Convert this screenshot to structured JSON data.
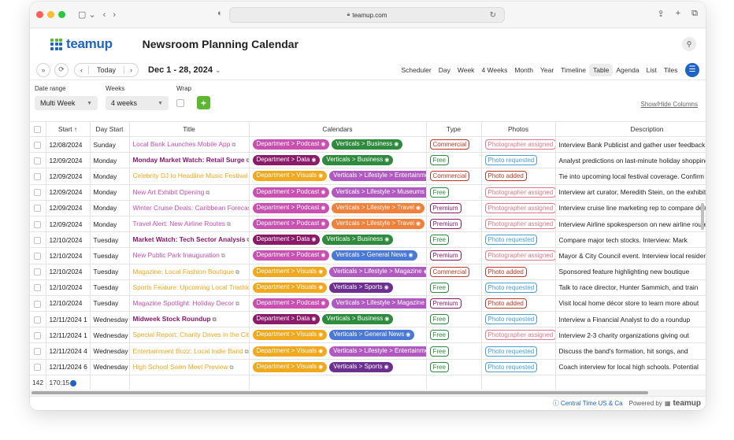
{
  "browser": {
    "url": "teamup.com"
  },
  "app": {
    "logo_text": "teamup",
    "calendar_title": "Newsroom Planning Calendar"
  },
  "toolbar": {
    "today": "Today",
    "date_range": "Dec 1 - 28, 2024",
    "views": [
      "Scheduler",
      "Day",
      "Week",
      "4 Weeks",
      "Month",
      "Year",
      "Timeline",
      "Table",
      "Agenda",
      "List",
      "Tiles"
    ],
    "active_view": "Table"
  },
  "filters": {
    "date_range_label": "Date range",
    "date_range_value": "Multi Week",
    "weeks_label": "Weeks",
    "weeks_value": "4 weeks",
    "wrap_label": "Wrap",
    "add_label": "+",
    "show_hide": "Show/Hide Columns"
  },
  "columns": [
    "Start ↑",
    "Day Start",
    "Title",
    "Calendars",
    "Type",
    "Photos",
    "Description"
  ],
  "colors": {
    "podcast": "#c94fb0",
    "data": "#8b1a6b",
    "visuals": "#f2a81d",
    "business": "#2e8b3e",
    "lifestyle": "#b05ac1",
    "general": "#4a78d6",
    "sports": "#6c2f8f",
    "lifestyle_trips": "#f0803a",
    "accent": "#1e63c7",
    "green": "#5cb82e"
  },
  "rows": [
    {
      "start": "12/08/2024",
      "day": "Sunday",
      "title": "Local Bank Launches Mobile App",
      "tcolor": "#c94fb0",
      "bold": false,
      "cal1": "Department > Podcast",
      "c1": "#c94fb0",
      "cal2": "Verticals > Business",
      "c2": "#2e8b3e",
      "type": "Commercial",
      "tyc": "#c0392b",
      "photo": "Photographer assigned",
      "phc": "#e07a8a",
      "desc": "Interview Bank Publicist and gather user feedback"
    },
    {
      "start": "12/09/2024",
      "day": "Monday",
      "title": "Monday Market Watch: Retail Surge",
      "tcolor": "#8b1a6b",
      "bold": true,
      "cal1": "Department > Data",
      "c1": "#8b1a6b",
      "cal2": "Verticals > Business",
      "c2": "#2e8b3e",
      "type": "Free",
      "tyc": "#2e8b3e",
      "photo": "Photo requested",
      "phc": "#4aa0d8",
      "desc": "Analyst predictions on last-minute holiday shopping"
    },
    {
      "start": "12/09/2024",
      "day": "Monday",
      "title": "Celebrity DJ to Headline Music Festival",
      "tcolor": "#f2a81d",
      "bold": false,
      "cal1": "Department > Visuals",
      "c1": "#f2a81d",
      "cal2": "Verticals > Lifestyle > Entertainment",
      "c2": "#b05ac1",
      "type": "Commercial",
      "tyc": "#c0392b",
      "photo": "Photo added",
      "phc": "#c0392b",
      "desc": "Tie into upcoming local festival coverage. Confirm"
    },
    {
      "start": "12/09/2024",
      "day": "Monday",
      "title": "New Art Exhibit Opening",
      "tcolor": "#c94fb0",
      "bold": false,
      "cal1": "Department > Podcast",
      "c1": "#c94fb0",
      "cal2": "Verticals > Lifestyle > Museums",
      "c2": "#b05ac1",
      "type": "Free",
      "tyc": "#2e8b3e",
      "photo": "Photographer assigned",
      "phc": "#e07a8a",
      "desc": "Interview art curator, Meredith Stein, on the exhibit"
    },
    {
      "start": "12/09/2024",
      "day": "Monday",
      "title": "Winter Cruise Deals: Caribbean Forecast",
      "tcolor": "#c94fb0",
      "bold": false,
      "cal1": "Department > Podcast",
      "c1": "#c94fb0",
      "cal2": "Verticals > Lifestyle > Travel",
      "c2": "#f0803a",
      "type": "Premium",
      "tyc": "#8b1a6b",
      "photo": "Photographer assigned",
      "phc": "#e07a8a",
      "desc": "Interview cruise line marketing rep to compare deals"
    },
    {
      "start": "12/09/2024",
      "day": "Monday",
      "title": "Travel Alert: New Airline Routes",
      "tcolor": "#c94fb0",
      "bold": false,
      "cal1": "Department > Podcast",
      "c1": "#c94fb0",
      "cal2": "Verticals > Lifestyle > Travel",
      "c2": "#f0803a",
      "type": "Premium",
      "tyc": "#8b1a6b",
      "photo": "Photographer assigned",
      "phc": "#e07a8a",
      "desc": "Interview Airline spokesperson on new airline routes"
    },
    {
      "start": "12/10/2024",
      "day": "Tuesday",
      "title": "Market Watch: Tech Sector Analysis",
      "tcolor": "#8b1a6b",
      "bold": true,
      "cal1": "Department > Data",
      "c1": "#8b1a6b",
      "cal2": "Verticals > Business",
      "c2": "#2e8b3e",
      "type": "Free",
      "tyc": "#2e8b3e",
      "photo": "Photo requested",
      "phc": "#4aa0d8",
      "desc": "Compare major tech stocks. Interview: Mark"
    },
    {
      "start": "12/10/2024",
      "day": "Tuesday",
      "title": "New Public Park Inauguration",
      "tcolor": "#c94fb0",
      "bold": false,
      "cal1": "Department > Podcast",
      "c1": "#c94fb0",
      "cal2": "Verticals > General News",
      "c2": "#4a78d6",
      "type": "Premium",
      "tyc": "#8b1a6b",
      "photo": "Photographer assigned",
      "phc": "#e07a8a",
      "desc": "Mayor & City Council event. Interview local residents"
    },
    {
      "start": "12/10/2024",
      "day": "Tuesday",
      "title": "Magazine: Local Fashion Boutique",
      "tcolor": "#f2a81d",
      "bold": false,
      "cal1": "Department > Visuals",
      "c1": "#f2a81d",
      "cal2": "Verticals > Lifestyle > Magazine",
      "c2": "#b05ac1",
      "type": "Commercial",
      "tyc": "#c0392b",
      "photo": "Photo added",
      "phc": "#c0392b",
      "desc": "Sponsored feature highlighting new boutique"
    },
    {
      "start": "12/10/2024",
      "day": "Tuesday",
      "title": "Sports Feature: Upcoming Local Triathlon",
      "tcolor": "#f2a81d",
      "bold": false,
      "cal1": "Department > Visuals",
      "c1": "#f2a81d",
      "cal2": "Verticals > Sports",
      "c2": "#6c2f8f",
      "type": "Free",
      "tyc": "#2e8b3e",
      "photo": "Photo requested",
      "phc": "#4aa0d8",
      "desc": "Talk to race director, Hunter Sammich, and train"
    },
    {
      "start": "12/10/2024",
      "day": "Tuesday",
      "title": "Magazine Spotlight: Holiday Decor",
      "tcolor": "#c94fb0",
      "bold": false,
      "cal1": "Department > Podcast",
      "c1": "#c94fb0",
      "cal2": "Verticals > Lifestyle > Magazine",
      "c2": "#b05ac1",
      "type": "Premium",
      "tyc": "#8b1a6b",
      "photo": "Photo added",
      "phc": "#c0392b",
      "desc": "Visit local home décor store to learn more about"
    },
    {
      "start": "12/11/2024 1",
      "day": "Wednesday",
      "title": "Midweek Stock Roundup",
      "tcolor": "#8b1a6b",
      "bold": true,
      "cal1": "Department > Data",
      "c1": "#8b1a6b",
      "cal2": "Verticals > Business",
      "c2": "#2e8b3e",
      "type": "Free",
      "tyc": "#2e8b3e",
      "photo": "Photo requested",
      "phc": "#4aa0d8",
      "desc": "Interview a Financial Analyst to do a roundup"
    },
    {
      "start": "12/11/2024 1",
      "day": "Wednesday",
      "title": "Special Report: Charity Drives in the City",
      "tcolor": "#f2a81d",
      "bold": false,
      "cal1": "Department > Visuals",
      "c1": "#f2a81d",
      "cal2": "Verticals > General News",
      "c2": "#4a78d6",
      "type": "Free",
      "tyc": "#2e8b3e",
      "photo": "Photographer assigned",
      "phc": "#e07a8a",
      "desc": "Interview 2-3 charity organizations giving out"
    },
    {
      "start": "12/11/2024 4",
      "day": "Wednesday",
      "title": "Entertainment Buzz: Local Indie Band",
      "tcolor": "#f2a81d",
      "bold": false,
      "cal1": "Department > Visuals",
      "c1": "#f2a81d",
      "cal2": "Verticals > Lifestyle > Entertainment",
      "c2": "#b05ac1",
      "type": "Free",
      "tyc": "#2e8b3e",
      "photo": "Photo requested",
      "phc": "#4aa0d8",
      "desc": "Discuss the band's formation, hit songs, and"
    },
    {
      "start": "12/11/2024 6",
      "day": "Wednesday",
      "title": "High School Swim Meet Preview",
      "tcolor": "#f2a81d",
      "bold": false,
      "cal1": "Department > Visuals",
      "c1": "#f2a81d",
      "cal2": "Verticals > Sports",
      "c2": "#6c2f8f",
      "type": "Free",
      "tyc": "#2e8b3e",
      "photo": "Photo requested",
      "phc": "#4aa0d8",
      "desc": "Coach interview for local high schools. Potential"
    }
  ],
  "footer": {
    "count": "142",
    "duration": "170:15"
  },
  "bottom": {
    "timezone": "Central Time US & Ca",
    "powered_by": "Powered by",
    "brand": "teamup"
  }
}
